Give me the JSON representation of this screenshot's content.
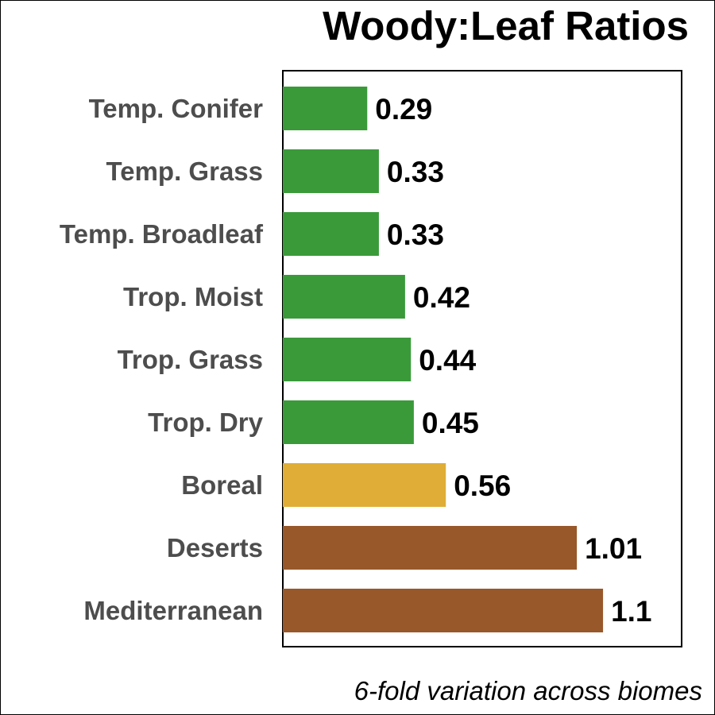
{
  "chart_data": {
    "type": "bar",
    "orientation": "horizontal",
    "title": "Woody:Leaf Ratios",
    "caption": "6-fold variation across biomes",
    "categories": [
      "Temp. Conifer",
      "Temp. Grass",
      "Temp. Broadleaf",
      "Trop. Moist",
      "Trop. Grass",
      "Trop. Dry",
      "Boreal",
      "Deserts",
      "Mediterranean"
    ],
    "values": [
      0.29,
      0.33,
      0.33,
      0.42,
      0.44,
      0.45,
      0.56,
      1.01,
      1.1
    ],
    "value_labels": [
      "0.29",
      "0.33",
      "0.33",
      "0.42",
      "0.44",
      "0.45",
      "0.56",
      "1.01",
      "1.1"
    ],
    "bar_colors": [
      "#3a9a3a",
      "#3a9a3a",
      "#3a9a3a",
      "#3a9a3a",
      "#3a9a3a",
      "#3a9a3a",
      "#e0ae36",
      "#98582a",
      "#98582a"
    ],
    "xlim": [
      0,
      1.37
    ],
    "grid": false,
    "legend": "none",
    "label_color": "#4d4d4d",
    "value_label_color": "#000000"
  }
}
